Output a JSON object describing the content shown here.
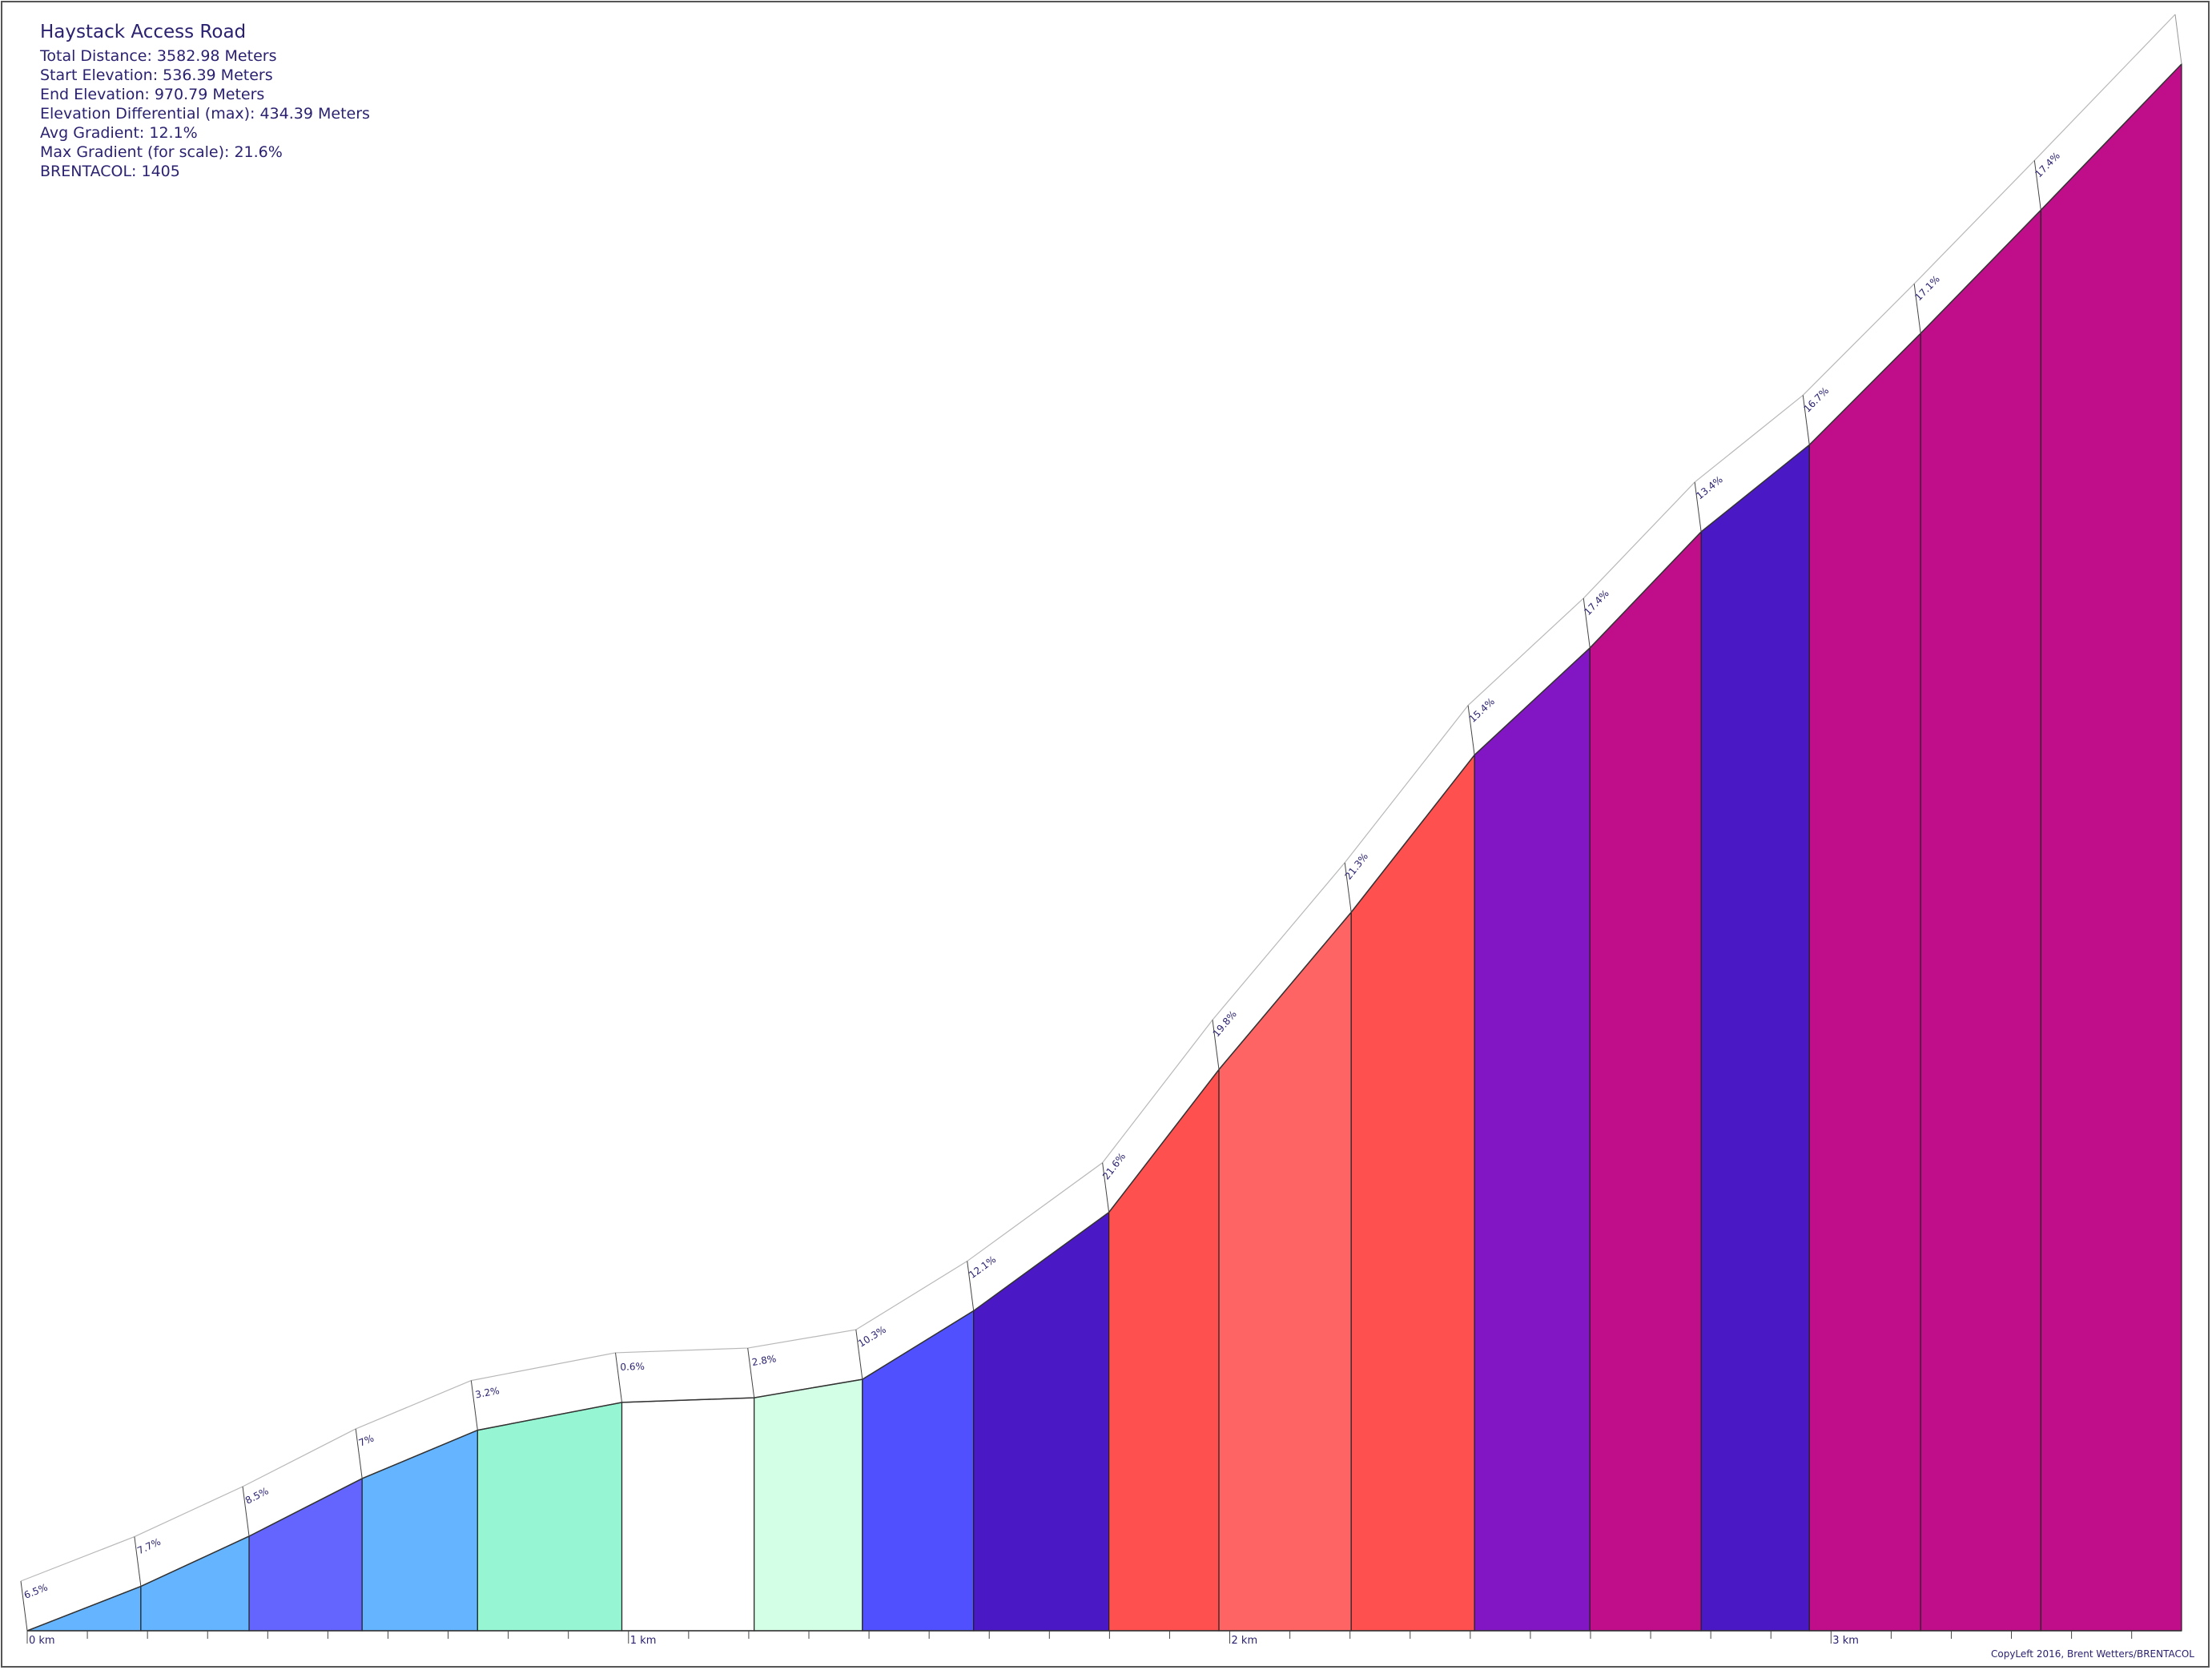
{
  "info": {
    "title": "Haystack Access Road",
    "total_distance": "Total Distance: 3582.98 Meters",
    "start_elevation": "Start Elevation: 536.39 Meters",
    "end_elevation": "End Elevation: 970.79 Meters",
    "elevation_differential": "Elevation Differential (max): 434.39 Meters",
    "avg_gradient": "Avg Gradient: 12.1%",
    "max_gradient": "Max Gradient (for scale): 21.6%",
    "brentacol": "BRENTACOL: 1405"
  },
  "copyleft": "CopyLeft 2016, Brent Wetters/BRENTACOL",
  "chart_data": {
    "type": "area",
    "title": "Haystack Access Road",
    "x_unit": "km",
    "xlim": [
      0,
      3.583
    ],
    "ylim": [
      536.39,
      970.79
    ],
    "x_ticks": [
      "0 km",
      "1 km",
      "2 km",
      "3 km"
    ],
    "segments": [
      {
        "start": 0.0,
        "end": 0.189,
        "gradient": "6.5%",
        "color": "#64b4ff"
      },
      {
        "start": 0.189,
        "end": 0.369,
        "gradient": "7.7%",
        "color": "#64b4ff"
      },
      {
        "start": 0.369,
        "end": 0.557,
        "gradient": "8.5%",
        "color": "#6464ff"
      },
      {
        "start": 0.557,
        "end": 0.749,
        "gradient": "7%",
        "color": "#64b4ff"
      },
      {
        "start": 0.749,
        "end": 0.989,
        "gradient": "3.2%",
        "color": "#96f5d2"
      },
      {
        "start": 0.989,
        "end": 1.209,
        "gradient": "0.6%",
        "color": "#ffffff"
      },
      {
        "start": 1.209,
        "end": 1.389,
        "gradient": "2.8%",
        "color": "#d2ffe6"
      },
      {
        "start": 1.389,
        "end": 1.574,
        "gradient": "10.3%",
        "color": "#5050ff"
      },
      {
        "start": 1.574,
        "end": 1.799,
        "gradient": "12.1%",
        "color": "#4a18c4"
      },
      {
        "start": 1.799,
        "end": 1.982,
        "gradient": "21.6%",
        "color": "#ff5050"
      },
      {
        "start": 1.982,
        "end": 2.202,
        "gradient": "19.8%",
        "color": "#ff6464"
      },
      {
        "start": 2.202,
        "end": 2.407,
        "gradient": "21.3%",
        "color": "#ff5050"
      },
      {
        "start": 2.407,
        "end": 2.599,
        "gradient": "15.4%",
        "color": "#8216c4"
      },
      {
        "start": 2.599,
        "end": 2.784,
        "gradient": "17.4%",
        "color": "#c00e8a"
      },
      {
        "start": 2.784,
        "end": 2.964,
        "gradient": "13.4%",
        "color": "#4a18c4"
      },
      {
        "start": 2.964,
        "end": 3.149,
        "gradient": "16.7%",
        "color": "#c00e8a"
      },
      {
        "start": 3.149,
        "end": 3.349,
        "gradient": "17.1%",
        "color": "#c00e8a"
      },
      {
        "start": 3.349,
        "end": 3.583,
        "gradient": "17.4%",
        "color": "#c00e8a"
      }
    ],
    "elevations": [
      536.39,
      548.7,
      562.6,
      578.6,
      592.0,
      599.7,
      601.0,
      606.1,
      625.1,
      652.4,
      692.0,
      735.6,
      779.2,
      808.9,
      841.1,
      865.2,
      896.1,
      930.3,
      970.79
    ]
  }
}
